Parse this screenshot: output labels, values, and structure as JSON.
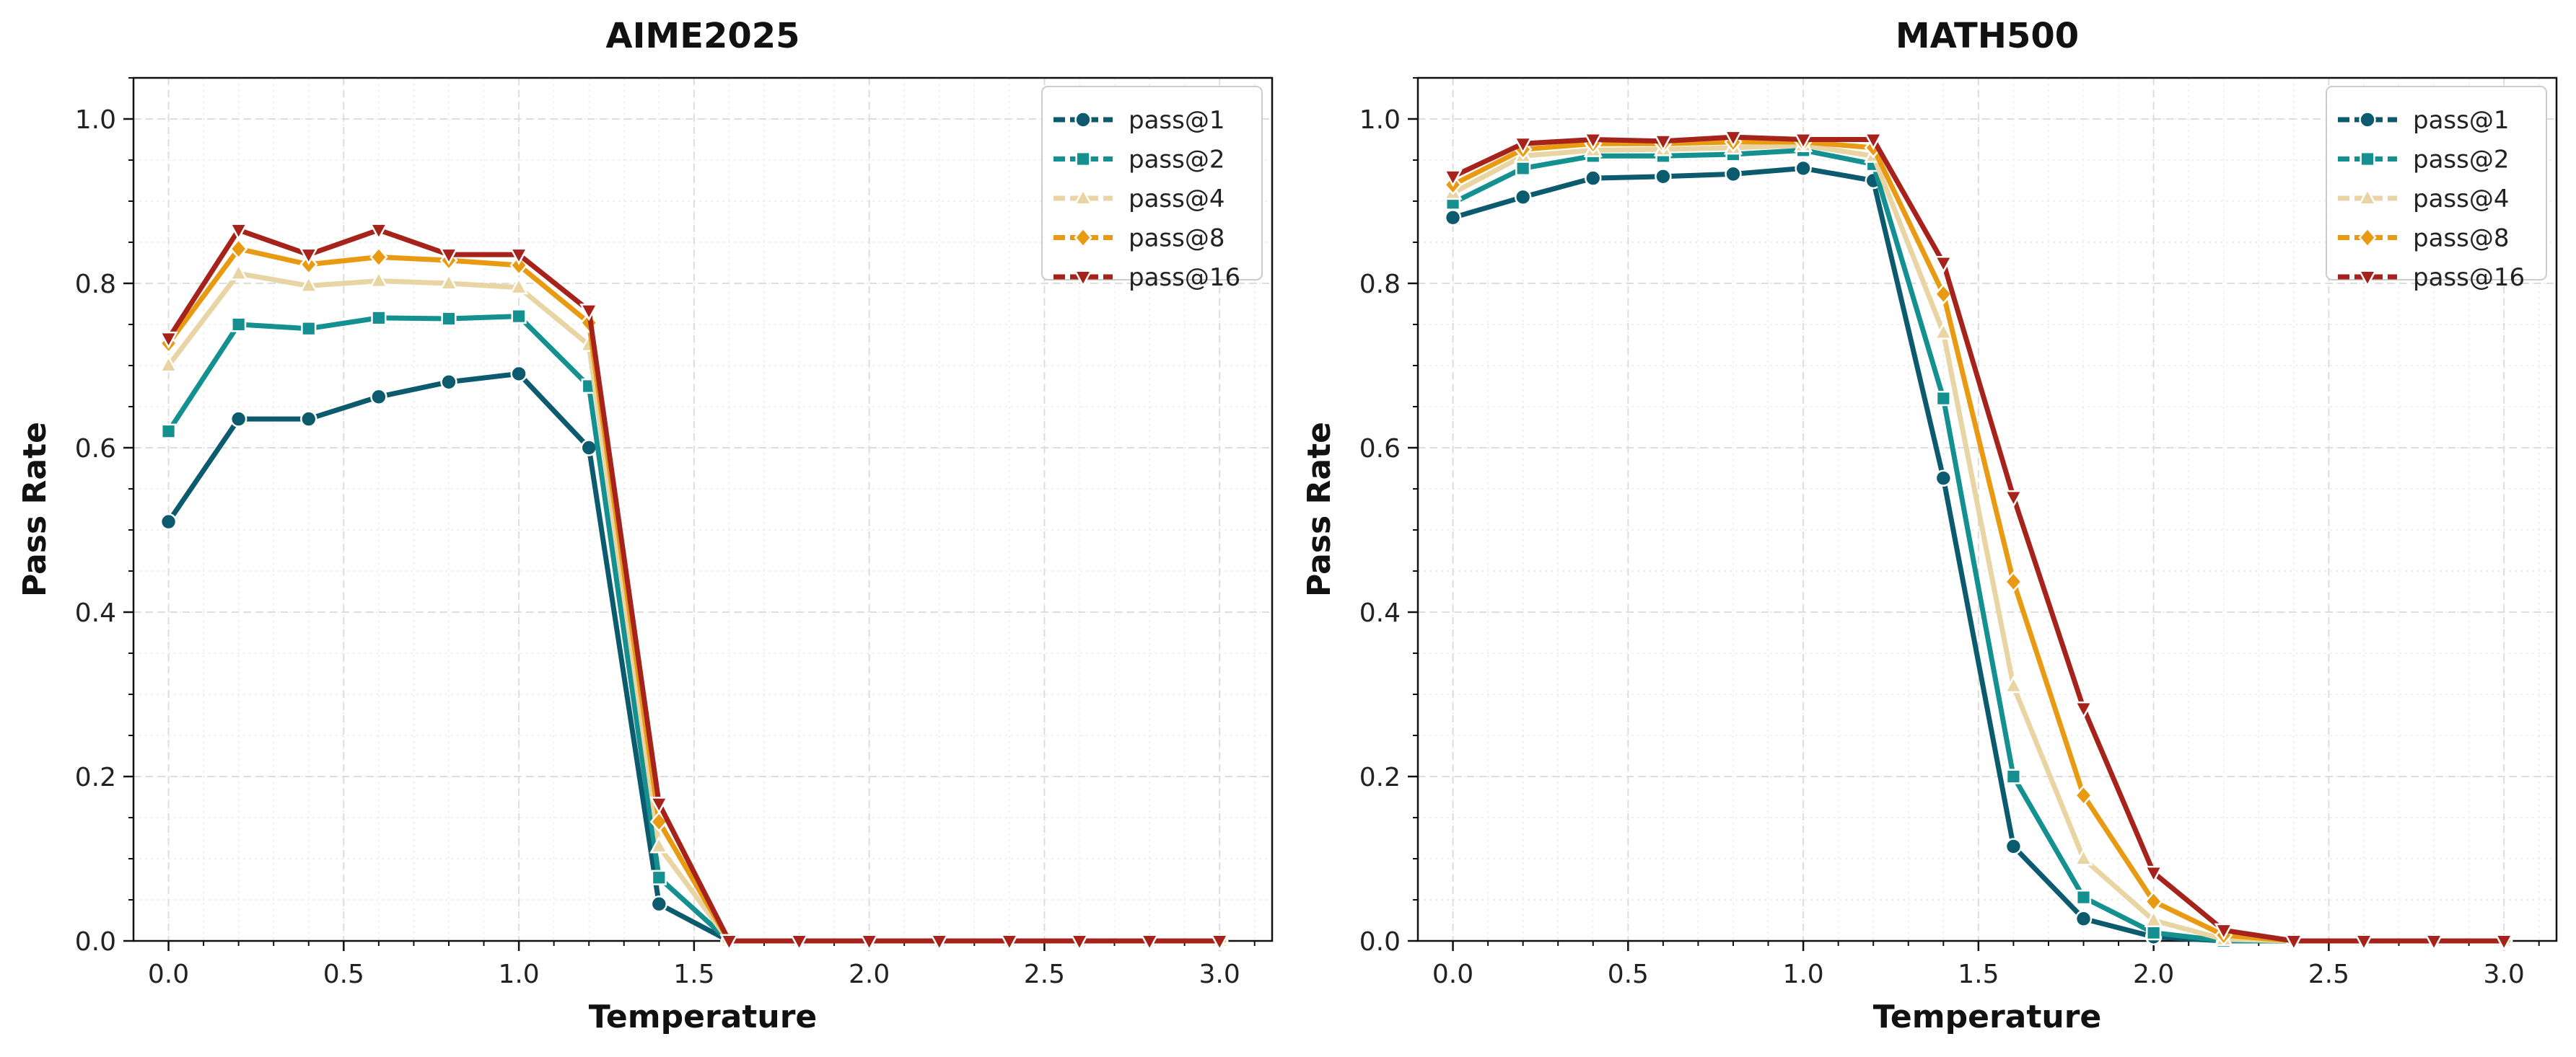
{
  "chart_data": [
    {
      "type": "line",
      "title": "AIME2025",
      "xlabel": "Temperature",
      "ylabel": "Pass Rate",
      "xlim": [
        -0.1,
        3.15
      ],
      "ylim": [
        0.0,
        1.05
      ],
      "xticks": [
        "0.0",
        "0.5",
        "1.0",
        "1.5",
        "2.0",
        "2.5",
        "3.0"
      ],
      "yticks": [
        "0.0",
        "0.2",
        "0.4",
        "0.6",
        "0.8",
        "1.0"
      ],
      "grid": true,
      "legend_position": "top-right",
      "x": [
        0.0,
        0.2,
        0.4,
        0.6,
        0.8,
        1.0,
        1.2,
        1.4,
        1.6,
        1.8,
        2.0,
        2.2,
        2.4,
        2.6,
        2.8,
        3.0
      ],
      "series": [
        {
          "name": "pass@1",
          "color": "#0b5a6e",
          "marker": "circle",
          "values": [
            0.51,
            0.635,
            0.635,
            0.662,
            0.68,
            0.69,
            0.6,
            0.045,
            0.0,
            0.0,
            0.0,
            0.0,
            0.0,
            0.0,
            0.0,
            0.0
          ]
        },
        {
          "name": "pass@2",
          "color": "#13908f",
          "marker": "square",
          "values": [
            0.62,
            0.75,
            0.745,
            0.758,
            0.757,
            0.76,
            0.675,
            0.077,
            0.0,
            0.0,
            0.0,
            0.0,
            0.0,
            0.0,
            0.0,
            0.0
          ]
        },
        {
          "name": "pass@4",
          "color": "#e9d5a3",
          "marker": "triangle-up",
          "values": [
            0.7,
            0.812,
            0.797,
            0.803,
            0.8,
            0.795,
            0.725,
            0.115,
            0.0,
            0.0,
            0.0,
            0.0,
            0.0,
            0.0,
            0.0,
            0.0
          ]
        },
        {
          "name": "pass@8",
          "color": "#e89b12",
          "marker": "diamond",
          "values": [
            0.727,
            0.842,
            0.823,
            0.832,
            0.828,
            0.822,
            0.752,
            0.145,
            0.0,
            0.0,
            0.0,
            0.0,
            0.0,
            0.0,
            0.0,
            0.0
          ]
        },
        {
          "name": "pass@16",
          "color": "#a6231c",
          "marker": "triangle-down",
          "values": [
            0.733,
            0.865,
            0.835,
            0.865,
            0.835,
            0.835,
            0.767,
            0.167,
            0.0,
            0.0,
            0.0,
            0.0,
            0.0,
            0.0,
            0.0,
            0.0
          ]
        }
      ]
    },
    {
      "type": "line",
      "title": "MATH500",
      "xlabel": "Temperature",
      "ylabel": "Pass Rate",
      "xlim": [
        -0.1,
        3.15
      ],
      "ylim": [
        0.0,
        1.05
      ],
      "xticks": [
        "0.0",
        "0.5",
        "1.0",
        "1.5",
        "2.0",
        "2.5",
        "3.0"
      ],
      "yticks": [
        "0.0",
        "0.2",
        "0.4",
        "0.6",
        "0.8",
        "1.0"
      ],
      "grid": true,
      "legend_position": "top-right",
      "x": [
        0.0,
        0.2,
        0.4,
        0.6,
        0.8,
        1.0,
        1.2,
        1.4,
        1.6,
        1.8,
        2.0,
        2.2,
        2.4,
        2.6,
        2.8,
        3.0
      ],
      "series": [
        {
          "name": "pass@1",
          "color": "#0b5a6e",
          "marker": "circle",
          "values": [
            0.88,
            0.905,
            0.928,
            0.93,
            0.933,
            0.94,
            0.925,
            0.563,
            0.115,
            0.027,
            0.005,
            0.0,
            0.0,
            0.0,
            0.0,
            0.0
          ]
        },
        {
          "name": "pass@2",
          "color": "#13908f",
          "marker": "square",
          "values": [
            0.898,
            0.94,
            0.955,
            0.955,
            0.957,
            0.962,
            0.945,
            0.66,
            0.2,
            0.053,
            0.01,
            0.0,
            0.0,
            0.0,
            0.0,
            0.0
          ]
        },
        {
          "name": "pass@4",
          "color": "#e9d5a3",
          "marker": "triangle-up",
          "values": [
            0.91,
            0.955,
            0.962,
            0.963,
            0.965,
            0.968,
            0.955,
            0.74,
            0.31,
            0.1,
            0.025,
            0.002,
            0.0,
            0.0,
            0.0,
            0.0
          ]
        },
        {
          "name": "pass@8",
          "color": "#e89b12",
          "marker": "diamond",
          "values": [
            0.92,
            0.963,
            0.97,
            0.97,
            0.972,
            0.972,
            0.965,
            0.787,
            0.437,
            0.177,
            0.048,
            0.007,
            0.0,
            0.0,
            0.0,
            0.0
          ]
        },
        {
          "name": "pass@16",
          "color": "#a6231c",
          "marker": "triangle-down",
          "values": [
            0.93,
            0.97,
            0.975,
            0.973,
            0.978,
            0.975,
            0.975,
            0.825,
            0.54,
            0.283,
            0.083,
            0.013,
            0.0,
            0.0,
            0.0,
            0.0
          ]
        }
      ]
    }
  ]
}
